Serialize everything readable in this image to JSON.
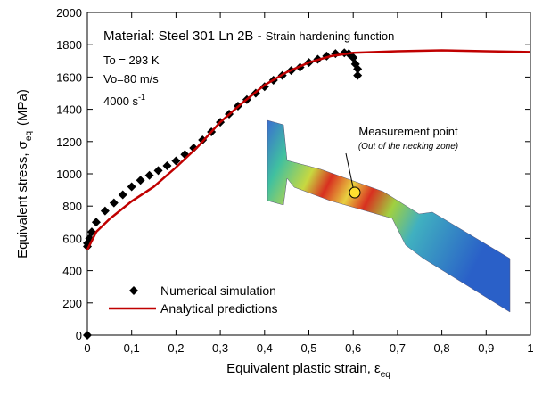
{
  "chart_data": {
    "type": "scatter",
    "title": "Material: Steel 301 Ln 2B - ",
    "subtitle": "Strain hardening function",
    "x_label": {
      "text": "Equivalent plastic strain, ε",
      "sub": "eq"
    },
    "y_label": {
      "text": "Equivalent stress, σ",
      "sub": "eq",
      "unit": "(MPa)"
    },
    "annotations": {
      "temperature": "To = 293 K",
      "velocity": "Vo=80 m/s",
      "rate": "4000 s",
      "rate_exp": "-1",
      "point": "Measurement point",
      "point_note": "(Out of the necking zone)"
    },
    "xlim": [
      0,
      1
    ],
    "ylim": [
      0,
      2000
    ],
    "xticks": [
      0,
      {
        "value": 0.1,
        "label": "0,1"
      },
      {
        "value": 0.2,
        "label": "0,2"
      },
      {
        "value": 0.3,
        "label": "0,3"
      },
      {
        "value": 0.4,
        "label": "0,4"
      },
      {
        "value": 0.5,
        "label": "0,5"
      },
      {
        "value": 0.6,
        "label": "0,6"
      },
      {
        "value": 0.7,
        "label": "0,7"
      },
      {
        "value": 0.8,
        "label": "0,8"
      },
      {
        "value": 0.9,
        "label": "0,9"
      },
      1
    ],
    "yticks": [
      0,
      200,
      400,
      600,
      800,
      1000,
      1200,
      1400,
      1600,
      1800,
      2000
    ],
    "grid": false,
    "legend": "bottom-left",
    "series": [
      {
        "name": "Numerical simulation",
        "color": "#000000",
        "style": "diamond",
        "x": [
          0,
          0,
          0,
          0.005,
          0.01,
          0.02,
          0.04,
          0.06,
          0.08,
          0.1,
          0.12,
          0.14,
          0.16,
          0.18,
          0.2,
          0.22,
          0.24,
          0.26,
          0.28,
          0.3,
          0.32,
          0.34,
          0.36,
          0.38,
          0.4,
          0.42,
          0.44,
          0.46,
          0.48,
          0.5,
          0.52,
          0.54,
          0.56,
          0.58,
          0.59,
          0.6,
          0.605,
          0.61,
          0.61
        ],
        "values": [
          0,
          550,
          570,
          600,
          640,
          700,
          770,
          820,
          870,
          920,
          960,
          990,
          1020,
          1050,
          1080,
          1120,
          1160,
          1210,
          1260,
          1320,
          1370,
          1420,
          1460,
          1500,
          1540,
          1580,
          1610,
          1640,
          1660,
          1690,
          1710,
          1730,
          1745,
          1750,
          1745,
          1720,
          1680,
          1650,
          1610
        ]
      },
      {
        "name": "Analytical predictions",
        "color": "#c00000",
        "style": "line",
        "x": [
          0,
          0.02,
          0.05,
          0.1,
          0.15,
          0.2,
          0.25,
          0.3,
          0.35,
          0.4,
          0.45,
          0.5,
          0.55,
          0.6,
          0.7,
          0.8,
          0.9,
          1
        ],
        "values": [
          530,
          640,
          720,
          830,
          920,
          1040,
          1170,
          1320,
          1440,
          1550,
          1630,
          1690,
          1730,
          1750,
          1760,
          1765,
          1760,
          1755
        ]
      }
    ]
  }
}
